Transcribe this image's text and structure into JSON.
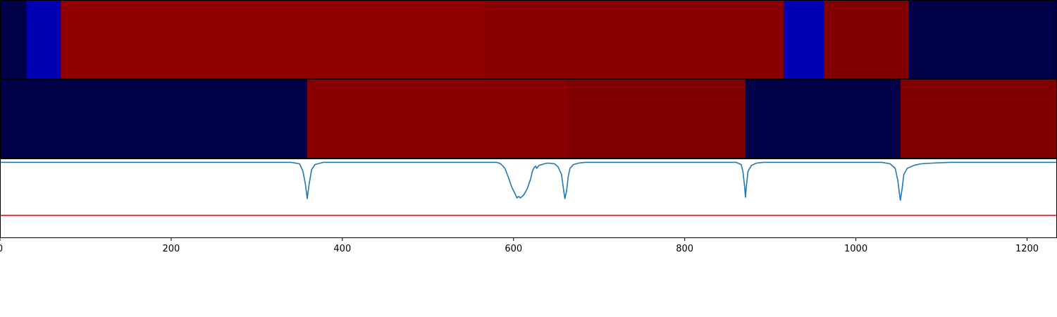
{
  "chart_data": [
    {
      "type": "heatmap",
      "title": "",
      "xlim": [
        0,
        1235
      ],
      "segments": [
        {
          "start": 0,
          "end": 31,
          "color": "#000048"
        },
        {
          "start": 31,
          "end": 71,
          "color": "#0000b4"
        },
        {
          "start": 71,
          "end": 567,
          "color": "#900000"
        },
        {
          "start": 567,
          "end": 916,
          "color": "#890000"
        },
        {
          "start": 916,
          "end": 963,
          "color": "#0000b4"
        },
        {
          "start": 963,
          "end": 1062,
          "color": "#820000"
        },
        {
          "start": 1062,
          "end": 1235,
          "color": "#000048"
        }
      ]
    },
    {
      "type": "heatmap",
      "title": "",
      "xlim": [
        0,
        1235
      ],
      "segments": [
        {
          "start": 0,
          "end": 359,
          "color": "#000048"
        },
        {
          "start": 359,
          "end": 604,
          "color": "#880000"
        },
        {
          "start": 604,
          "end": 662,
          "color": "#8a0000"
        },
        {
          "start": 662,
          "end": 871,
          "color": "#800000"
        },
        {
          "start": 871,
          "end": 1052,
          "color": "#000048"
        },
        {
          "start": 1052,
          "end": 1235,
          "color": "#810000"
        }
      ]
    },
    {
      "type": "line",
      "title": "",
      "xlabel": "",
      "ylabel": "",
      "xlim": [
        0,
        1235
      ],
      "ylim": [
        -1.0,
        0.05
      ],
      "line_color": "#1f77b4",
      "threshold": {
        "value": -0.7,
        "color": "#ff0000"
      },
      "x": [
        0,
        340,
        350,
        354,
        357,
        359,
        361,
        364,
        368,
        378,
        580,
        585,
        590,
        594,
        598,
        602,
        604,
        606,
        608,
        612,
        616,
        620,
        622,
        624,
        626,
        627,
        630,
        636,
        640,
        648,
        652,
        656,
        658,
        660,
        662,
        664,
        666,
        670,
        676,
        684,
        860,
        866,
        868,
        870,
        871,
        872,
        874,
        878,
        884,
        892,
        1030,
        1040,
        1046,
        1049,
        1051,
        1052,
        1054,
        1056,
        1060,
        1068,
        1076,
        1090,
        1110,
        1235
      ],
      "series": [
        {
          "values": [
            0,
            0,
            -0.02,
            -0.12,
            -0.3,
            -0.48,
            -0.3,
            -0.1,
            -0.03,
            0,
            0,
            -0.02,
            -0.08,
            -0.2,
            -0.33,
            -0.42,
            -0.47,
            -0.45,
            -0.47,
            -0.43,
            -0.35,
            -0.22,
            -0.12,
            -0.07,
            -0.05,
            -0.08,
            -0.04,
            -0.02,
            -0.01,
            -0.02,
            -0.06,
            -0.16,
            -0.32,
            -0.48,
            -0.38,
            -0.18,
            -0.08,
            -0.03,
            -0.01,
            0,
            0,
            -0.03,
            -0.12,
            -0.32,
            -0.46,
            -0.32,
            -0.12,
            -0.04,
            -0.01,
            0,
            0,
            -0.02,
            -0.08,
            -0.24,
            -0.42,
            -0.5,
            -0.35,
            -0.16,
            -0.08,
            -0.04,
            -0.02,
            -0.01,
            0,
            0
          ]
        }
      ],
      "xticks": [
        0,
        200,
        400,
        600,
        800,
        1000,
        1200
      ],
      "xtick_labels": [
        "0",
        "200",
        "400",
        "600",
        "800",
        "1000",
        "1200"
      ]
    }
  ]
}
